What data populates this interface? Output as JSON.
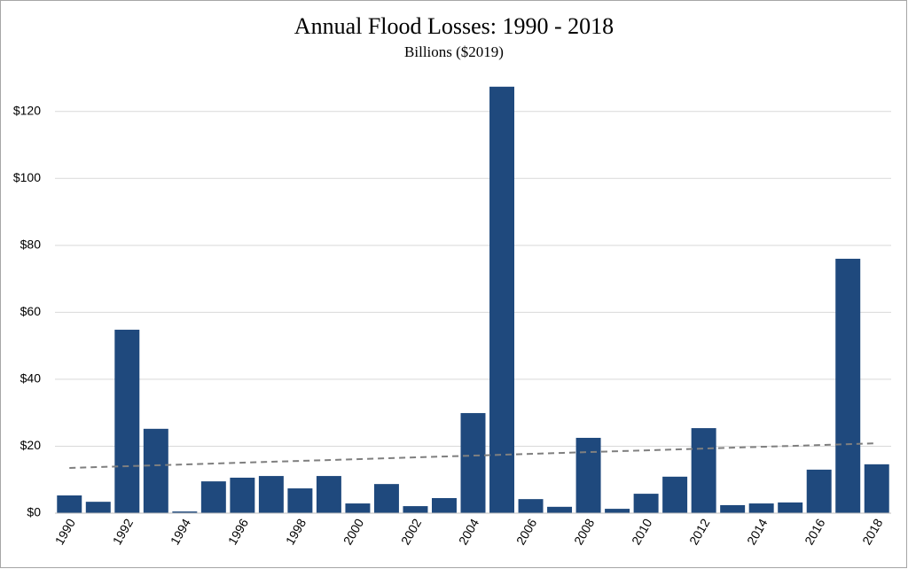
{
  "chart_data": {
    "type": "bar",
    "title": "Annual Flood Losses: 1990 - 2018",
    "subtitle": "Billions ($2019)",
    "categories": [
      "1990",
      null,
      "1992",
      null,
      "1994",
      null,
      "1996",
      null,
      "1998",
      null,
      "2000",
      null,
      "2002",
      null,
      "2004",
      null,
      "2006",
      null,
      "2008",
      null,
      "2010",
      null,
      "2012",
      null,
      "2014",
      null,
      "2016",
      null,
      "2018"
    ],
    "values": [
      5.3,
      3.4,
      54.8,
      25.2,
      0.5,
      9.5,
      10.6,
      11.1,
      7.4,
      11.1,
      2.9,
      8.7,
      2.1,
      4.5,
      29.9,
      127.4,
      4.2,
      1.9,
      22.5,
      1.3,
      5.8,
      10.9,
      25.4,
      2.4,
      2.9,
      3.2,
      13.0,
      76.0,
      14.6
    ],
    "color": "#1f497d",
    "trendline": true,
    "trendline_color": "#7f7f7f",
    "ylim": [
      0,
      130
    ],
    "yticks": [
      {
        "value": 0,
        "label": "$0"
      },
      {
        "value": 20,
        "label": "$20"
      },
      {
        "value": 40,
        "label": "$40"
      },
      {
        "value": 60,
        "label": "$60"
      },
      {
        "value": 80,
        "label": "$80"
      },
      {
        "value": 100,
        "label": "$100"
      },
      {
        "value": 120,
        "label": "$120"
      }
    ],
    "grid": true
  }
}
